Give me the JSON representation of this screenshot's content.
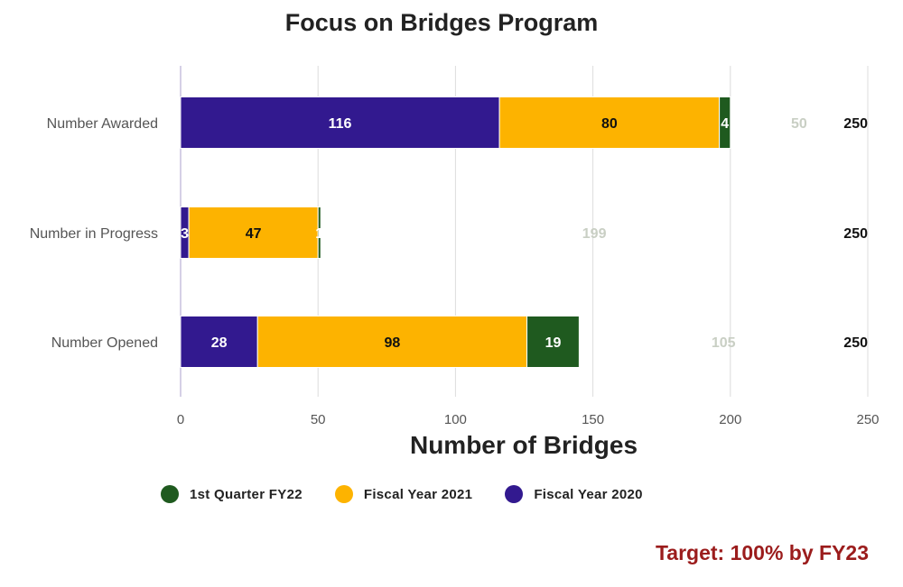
{
  "chart_data": {
    "type": "bar",
    "orientation": "horizontal",
    "stacked": true,
    "title": "Focus on Bridges Program",
    "xlabel": "Number of Bridges",
    "ylabel": "",
    "categories": [
      "Number Awarded",
      "Number in Progress",
      "Number Opened"
    ],
    "series": [
      {
        "name": "Fiscal Year 2020",
        "values": [
          116,
          3,
          28
        ],
        "color": "#32198f",
        "label_color": "#ffffff"
      },
      {
        "name": "Fiscal Year 2021",
        "values": [
          80,
          47,
          98
        ],
        "color": "#fdb300",
        "label_color": "#111111"
      },
      {
        "name": "1st Quarter FY22",
        "values": [
          4,
          1,
          19
        ],
        "color": "#1f5a1f",
        "label_color": "#ffffff"
      },
      {
        "name": "",
        "values": [
          50,
          199,
          105
        ],
        "color": "transparent",
        "label_color": "#c9cfc4"
      }
    ],
    "totals": [
      "250",
      "250",
      "250"
    ],
    "xlim": [
      0,
      250
    ],
    "xticks": [
      0,
      50,
      100,
      150,
      200,
      250
    ],
    "grid": true,
    "legend_position": "bottom",
    "legend_order": [
      "1st Quarter FY22",
      "Fiscal Year 2021",
      "Fiscal Year 2020"
    ]
  },
  "annotation": {
    "target": "Target: 100% by FY23",
    "color": "#9b1c1c"
  }
}
